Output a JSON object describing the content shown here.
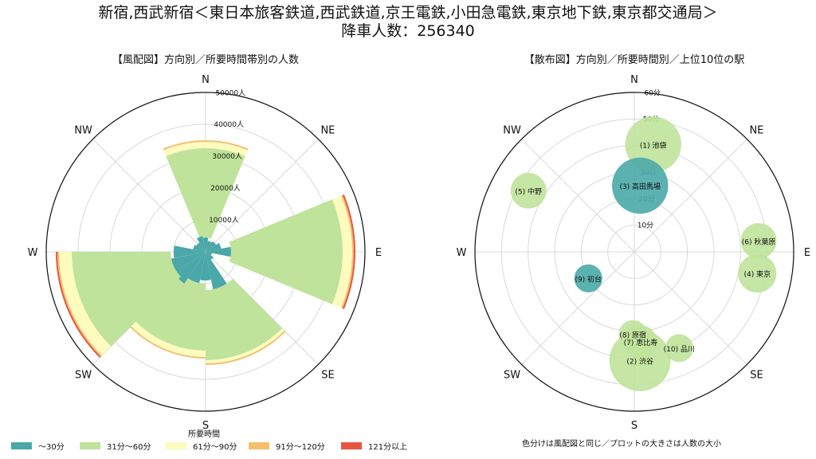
{
  "title_line1": "新宿,西武新宿＜東日本旅客鉄道,西武鉄道,京王電鉄,小田急電鉄,東京地下鉄,東京都交通局＞",
  "title_line2": "降車人数：256340",
  "left_subtitle": "【風配図】方向別／所要時間帯別の人数",
  "right_subtitle": "【散布図】方向別／所要時間別／上位10位の駅",
  "directions": [
    "N",
    "NE",
    "E",
    "SE",
    "S",
    "SW",
    "W",
    "NW"
  ],
  "colors": {
    "c30": "#4aa8a8",
    "c60": "#bfe39a",
    "c90": "#fdfbbe",
    "c120": "#f6bf6e",
    "c121": "#e8553f"
  },
  "legend": {
    "title": "所要時間",
    "items": [
      {
        "label": "～30分",
        "color": "#4aa8a8"
      },
      {
        "label": "31分～60分",
        "color": "#bfe39a"
      },
      {
        "label": "61分～90分",
        "color": "#fdfbbe"
      },
      {
        "label": "91分～120分",
        "color": "#f6bf6e"
      },
      {
        "label": "121分以上",
        "color": "#e8553f"
      }
    ]
  },
  "note": "色分けは風配図と同じ／プロットの大きさは人数の大小",
  "chart_data": [
    {
      "type": "polar-bar",
      "title": "【風配図】方向別／所要時間帯別の人数",
      "radial_max": 50000,
      "radial_ticks": [
        "10000人",
        "20000人",
        "30000人",
        "40000人",
        "50000人"
      ],
      "radial_tick_values": [
        10000,
        20000,
        30000,
        40000,
        50000
      ],
      "sectors_per_ring": 16,
      "series_names": [
        "～30分",
        "31分～60分",
        "61分～90分",
        "91分～120分",
        "121分以上"
      ],
      "sectors": [
        {
          "angle": 0,
          "values": [
            4500,
            28000,
            2000,
            500,
            0
          ]
        },
        {
          "angle": 22.5,
          "values": [
            3500,
            0,
            0,
            0,
            0
          ]
        },
        {
          "angle": 45,
          "values": [
            4000,
            0,
            0,
            0,
            0
          ]
        },
        {
          "angle": 67.5,
          "values": [
            5000,
            0,
            0,
            0,
            0
          ]
        },
        {
          "angle": 90,
          "values": [
            8000,
            35000,
            3000,
            500,
            500
          ]
        },
        {
          "angle": 112.5,
          "values": [
            2000,
            0,
            0,
            0,
            0
          ]
        },
        {
          "angle": 135,
          "values": [
            3000,
            0,
            0,
            0,
            0
          ]
        },
        {
          "angle": 157.5,
          "values": [
            12000,
            22000,
            1000,
            500,
            0
          ]
        },
        {
          "angle": 180,
          "values": [
            9000,
            0,
            0,
            0,
            0
          ]
        },
        {
          "angle": 202.5,
          "values": [
            10000,
            21000,
            2000,
            500,
            0
          ]
        },
        {
          "angle": 225,
          "values": [
            12000,
            0,
            0,
            0,
            0
          ]
        },
        {
          "angle": 247.5,
          "values": [
            11000,
            31000,
            4000,
            500,
            500
          ]
        },
        {
          "angle": 270,
          "values": [
            10000,
            0,
            0,
            0,
            0
          ]
        },
        {
          "angle": 292.5,
          "values": [
            4000,
            0,
            0,
            0,
            0
          ]
        },
        {
          "angle": 315,
          "values": [
            3500,
            0,
            0,
            0,
            0
          ]
        },
        {
          "angle": 337.5,
          "values": [
            5000,
            0,
            0,
            0,
            0
          ]
        }
      ]
    },
    {
      "type": "scatter-polar",
      "title": "【散布図】方向別／所要時間別／上位10位の駅",
      "radial_max": 60,
      "radial_ticks": [
        "10分",
        "20分",
        "30分",
        "40分",
        "50分",
        "60分"
      ],
      "radial_tick_values": [
        10,
        20,
        30,
        40,
        50,
        60
      ],
      "points": [
        {
          "label": "(1) 池袋",
          "angle": 10,
          "r": 41,
          "size": 22,
          "color": "#bfe39a"
        },
        {
          "label": "(2) 渋谷",
          "angle": 177,
          "r": 41,
          "size": 24,
          "color": "#bfe39a"
        },
        {
          "label": "(3) 高田馬場",
          "angle": 5,
          "r": 25,
          "size": 22,
          "color": "#4aa8a8"
        },
        {
          "label": "(4) 東京",
          "angle": 100,
          "r": 47,
          "size": 15,
          "color": "#bfe39a"
        },
        {
          "label": "(5) 中野",
          "angle": 300,
          "r": 46,
          "size": 14,
          "color": "#bfe39a"
        },
        {
          "label": "(6) 秋葉原",
          "angle": 85,
          "r": 47,
          "size": 14,
          "color": "#bfe39a"
        },
        {
          "label": "(7) 恵比寿",
          "angle": 176,
          "r": 34,
          "size": 13,
          "color": "#bfe39a"
        },
        {
          "label": "(8) 原宿",
          "angle": 181,
          "r": 31,
          "size": 11,
          "color": "#bfe39a"
        },
        {
          "label": "(9) 初台",
          "angle": 240,
          "r": 20,
          "size": 11,
          "color": "#4aa8a8"
        },
        {
          "label": "(10) 品川",
          "angle": 155,
          "r": 40,
          "size": 11,
          "color": "#bfe39a"
        }
      ]
    }
  ]
}
